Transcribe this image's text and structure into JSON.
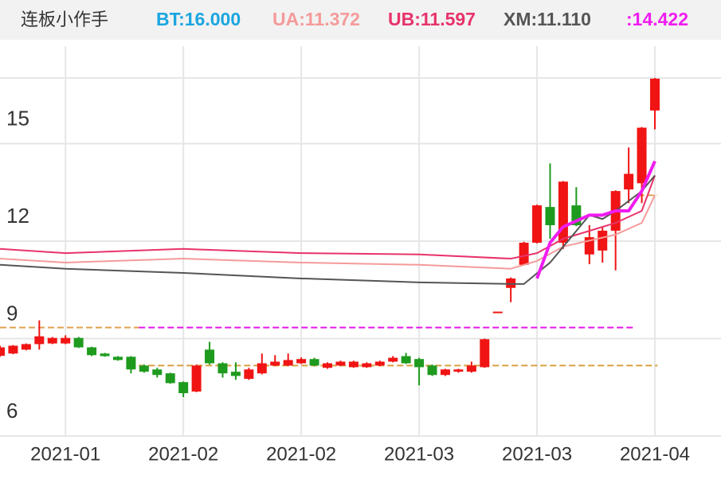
{
  "chart_data": {
    "type": "candlestick",
    "title": "连板小作手",
    "indicators": [
      {
        "label": "BT:16.000",
        "color": "#1aa6e0"
      },
      {
        "label": "UA:11.372",
        "color": "#f59a9a"
      },
      {
        "label": "UB:11.597",
        "color": "#e8336b"
      },
      {
        "label": "XM:11.110",
        "color": "#555555"
      },
      {
        "label": ":14.422",
        "color": "#f01cf0"
      }
    ],
    "categories": [
      null,
      null,
      null,
      null,
      null,
      "2021-01",
      null,
      null,
      null,
      null,
      null,
      null,
      null,
      null,
      "2021-02",
      null,
      null,
      null,
      null,
      null,
      null,
      null,
      null,
      "2021-02",
      null,
      null,
      null,
      null,
      null,
      null,
      null,
      null,
      "2021-03",
      null,
      null,
      null,
      null,
      null,
      null,
      null,
      null,
      "2021-03",
      null,
      null,
      null,
      null,
      null,
      null,
      null,
      null,
      "2021-04"
    ],
    "open": [
      8.47,
      8.54,
      8.66,
      8.83,
      8.85,
      8.85,
      9.02,
      8.73,
      8.54,
      8.44,
      8.44,
      8.17,
      8.05,
      7.93,
      7.66,
      7.37,
      8.66,
      8.24,
      7.98,
      7.76,
      7.93,
      8.17,
      8.17,
      8.24,
      8.37,
      8.1,
      8.17,
      8.12,
      8.12,
      8.17,
      8.29,
      8.46,
      8.37,
      8.17,
      7.88,
      7.98,
      7.98,
      8.12,
      9.83,
      10.56,
      11.27,
      11.95,
      13.05,
      11.95,
      13.1,
      11.59,
      11.71,
      12.32,
      13.59,
      13.78,
      16.02
    ],
    "close": [
      8.73,
      8.78,
      8.83,
      9.07,
      9.02,
      9.02,
      8.73,
      8.49,
      8.46,
      8.34,
      8.05,
      7.98,
      7.88,
      7.63,
      7.32,
      8.17,
      8.24,
      7.93,
      7.85,
      8.05,
      8.24,
      8.29,
      8.34,
      8.37,
      8.17,
      8.24,
      8.29,
      8.29,
      8.24,
      8.29,
      8.41,
      8.24,
      8.12,
      7.88,
      8.05,
      8.05,
      8.17,
      8.98,
      9.83,
      10.85,
      11.95,
      13.1,
      12.49,
      13.83,
      12.49,
      12.12,
      12.32,
      13.54,
      14.07,
      15.49,
      17.0
    ],
    "high": [
      8.78,
      8.8,
      8.85,
      9.56,
      9.05,
      9.1,
      9.05,
      8.75,
      8.56,
      8.46,
      8.46,
      8.2,
      8.1,
      7.95,
      7.68,
      8.2,
      8.9,
      8.27,
      8.27,
      8.1,
      8.54,
      8.49,
      8.54,
      8.42,
      8.41,
      8.27,
      8.32,
      8.32,
      8.27,
      8.32,
      8.46,
      8.56,
      8.41,
      8.2,
      8.07,
      8.07,
      8.29,
      9.0,
      9.83,
      10.88,
      11.98,
      13.12,
      14.39,
      13.85,
      13.66,
      12.49,
      12.44,
      13.56,
      14.88,
      15.51,
      17.02
    ],
    "low": [
      8.44,
      8.52,
      8.64,
      8.66,
      8.83,
      8.83,
      8.71,
      8.46,
      8.44,
      8.32,
      7.93,
      7.95,
      7.8,
      7.61,
      7.2,
      7.35,
      8.2,
      7.8,
      7.73,
      7.73,
      7.9,
      8.15,
      8.15,
      8.22,
      8.15,
      8.07,
      8.15,
      8.1,
      8.1,
      8.15,
      8.27,
      8.22,
      7.56,
      7.85,
      7.85,
      7.95,
      7.95,
      8.1,
      9.83,
      10.12,
      11.25,
      11.93,
      12.07,
      11.76,
      12.46,
      11.29,
      11.34,
      11.1,
      13.17,
      13.17,
      15.44
    ],
    "up_color": "#f01414",
    "down_color": "#1e9b1e",
    "lines": [
      {
        "color": "#e8336b",
        "width": 2,
        "x": [
          0,
          5,
          14,
          23,
          32,
          39,
          41,
          43,
          47,
          49,
          50
        ],
        "values": [
          11.76,
          11.63,
          11.76,
          11.63,
          11.59,
          11.46,
          11.63,
          12.07,
          12.56,
          12.93,
          14.02
        ]
      },
      {
        "color": "#f59a9a",
        "width": 2,
        "x": [
          0,
          5,
          14,
          23,
          32,
          39,
          41,
          43,
          47,
          49,
          50
        ],
        "values": [
          11.46,
          11.34,
          11.46,
          11.34,
          11.27,
          11.15,
          11.39,
          11.83,
          12.2,
          12.56,
          13.41
        ]
      },
      {
        "color": "#555555",
        "width": 2,
        "x": [
          0,
          5,
          14,
          23,
          32,
          39,
          40,
          42,
          45,
          46,
          47,
          49,
          50
        ],
        "values": [
          11.27,
          11.15,
          11.02,
          10.85,
          10.73,
          10.68,
          10.68,
          11.34,
          12.8,
          12.68,
          12.93,
          13.54,
          14.02
        ]
      },
      {
        "color": "#f01cf0",
        "width": 4,
        "x": [
          41,
          42,
          43,
          45,
          46,
          47,
          48,
          49,
          50
        ],
        "values": [
          10.85,
          11.95,
          12.44,
          12.8,
          12.8,
          12.93,
          12.93,
          13.54,
          14.46
        ]
      }
    ],
    "hlines": [
      {
        "value": 9.34,
        "from": 0,
        "to": 10.6,
        "color": "#e0a050"
      },
      {
        "value": 9.34,
        "from": 10.6,
        "to": 48.4,
        "color": "#e815e8"
      },
      {
        "value": 8.17,
        "from": 10.6,
        "to": 50.2,
        "color": "#d8a040"
      },
      {
        "value": 13.41,
        "from": 48.7,
        "to": 50.2,
        "color": "#e0a050"
      }
    ],
    "ylim": [
      6,
      18
    ],
    "yticks": [
      6,
      9,
      12,
      15
    ],
    "grid": true
  }
}
